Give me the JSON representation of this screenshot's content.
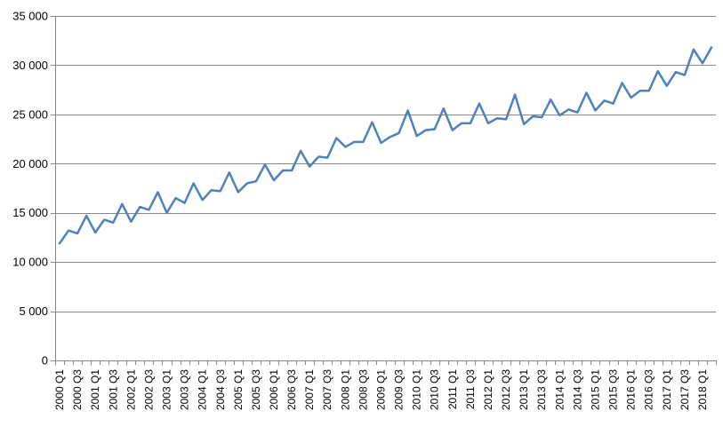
{
  "chart_data": {
    "type": "line",
    "title": "",
    "xlabel": "",
    "ylabel": "",
    "ylim": [
      0,
      35000
    ],
    "y_ticks": [
      0,
      5000,
      10000,
      15000,
      20000,
      25000,
      30000,
      35000
    ],
    "y_tick_labels": [
      "0",
      "5 000",
      "10 000",
      "15 000",
      "20 000",
      "25 000",
      "30 000",
      "35 000"
    ],
    "grid": true,
    "legend": "none",
    "x": [
      "2000 Q1",
      "2000 Q2",
      "2000 Q3",
      "2000 Q4",
      "2001 Q1",
      "2001 Q2",
      "2001 Q3",
      "2001 Q4",
      "2002 Q1",
      "2002 Q2",
      "2002 Q3",
      "2002 Q4",
      "2003 Q1",
      "2003 Q2",
      "2003 Q3",
      "2003 Q4",
      "2004 Q1",
      "2004 Q2",
      "2004 Q3",
      "2004 Q4",
      "2005 Q1",
      "2005 Q2",
      "2005 Q3",
      "2005 Q4",
      "2006 Q1",
      "2006 Q2",
      "2006 Q3",
      "2006 Q4",
      "2007 Q1",
      "2007 Q2",
      "2007 Q3",
      "2007 Q4",
      "2008 Q1",
      "2008 Q2",
      "2008 Q3",
      "2008 Q4",
      "2009 Q1",
      "2009 Q2",
      "2009 Q3",
      "2009 Q4",
      "2010 Q1",
      "2010 Q2",
      "2010 Q3",
      "2010 Q4",
      "2011 Q1",
      "2011 Q2",
      "2011 Q3",
      "2011 Q4",
      "2012 Q1",
      "2012 Q2",
      "2012 Q3",
      "2012 Q4",
      "2013 Q1",
      "2013 Q2",
      "2013 Q3",
      "2013 Q4",
      "2014 Q1",
      "2014 Q2",
      "2014 Q3",
      "2014 Q4",
      "2015 Q1",
      "2015 Q2",
      "2015 Q3",
      "2015 Q4",
      "2016 Q1",
      "2016 Q2",
      "2016 Q3",
      "2016 Q4",
      "2017 Q1",
      "2017 Q2",
      "2017 Q3",
      "2017 Q4",
      "2018 Q1",
      "2018 Q2"
    ],
    "x_tick_labels": [
      "2000 Q1",
      "2000 Q3",
      "2001 Q1",
      "2001 Q3",
      "2002 Q1",
      "2002 Q3",
      "2003 Q1",
      "2003 Q3",
      "2004 Q1",
      "2004 Q3",
      "2005 Q1",
      "2005 Q3",
      "2006 Q1",
      "2006 Q3",
      "2007 Q1",
      "2007 Q3",
      "2008 Q1",
      "2008 Q3",
      "2009 Q1",
      "2009 Q3",
      "2010 Q1",
      "2010 Q3",
      "2011 Q1",
      "2011 Q3",
      "2012 Q1",
      "2012 Q3",
      "2013 Q1",
      "2013 Q3",
      "2014 Q1",
      "2014 Q3",
      "2015 Q1",
      "2015 Q3",
      "2016 Q1",
      "2016 Q3",
      "2017 Q1",
      "2017 Q3",
      "2018 Q1"
    ],
    "series": [
      {
        "color": "#4F81BD",
        "values": [
          11900,
          13200,
          12900,
          14700,
          13000,
          14300,
          14000,
          15900,
          14100,
          15600,
          15300,
          17100,
          15000,
          16500,
          16000,
          18000,
          16300,
          17300,
          17200,
          19100,
          17100,
          18000,
          18200,
          19900,
          18300,
          19300,
          19300,
          21300,
          19700,
          20700,
          20600,
          22600,
          21700,
          22200,
          22200,
          24200,
          22100,
          22700,
          23100,
          25400,
          22800,
          23400,
          23500,
          25600,
          23400,
          24100,
          24100,
          26100,
          24100,
          24600,
          24500,
          27000,
          24000,
          24800,
          24700,
          26500,
          24900,
          25500,
          25200,
          27200,
          25400,
          26400,
          26100,
          28200,
          26700,
          27400,
          27400,
          29400,
          27900,
          29300,
          29000,
          31600,
          30200,
          31800
        ]
      }
    ]
  }
}
